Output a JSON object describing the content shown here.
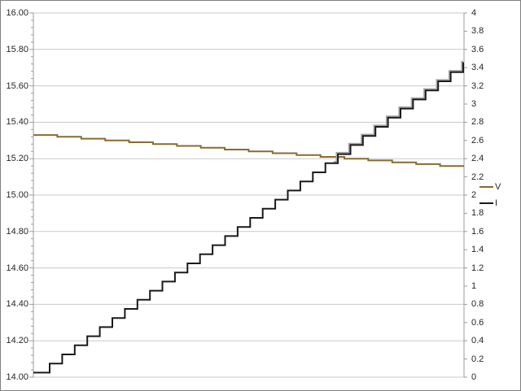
{
  "page": {
    "background": "#ffffff",
    "border_color": "#808080"
  },
  "chart_data": {
    "type": "line",
    "title": "",
    "grid": {
      "horizontal": true,
      "vertical": false,
      "color": "#c8c8c8"
    },
    "axis_color": "#9b9b9b",
    "label_color": "#262626",
    "x_axis": {
      "labels_visible": false
    },
    "left_axis": {
      "min": 14.0,
      "max": 16.0,
      "major_step": 0.2,
      "minor_step": 0.04,
      "tick_labels": [
        "16.00",
        "15.80",
        "15.60",
        "15.40",
        "15.20",
        "15.00",
        "14.80",
        "14.60",
        "14.40",
        "14.20",
        "14.00"
      ]
    },
    "right_axis": {
      "min": 0,
      "max": 4,
      "major_step": 0.2,
      "tick_labels": [
        "4",
        "3.8",
        "3.6",
        "3.4",
        "3.2",
        "3",
        "2.8",
        "2.6",
        "2.4",
        "2.2",
        "2",
        "1.8",
        "1.6",
        "1.4",
        "1.2",
        "1",
        "0.8",
        "0.6",
        "0.4",
        "0.2",
        "0"
      ]
    },
    "legend": {
      "position": "right",
      "entries": [
        {
          "label": "V",
          "color": "#8a6a2f"
        },
        {
          "label": "I",
          "color": "#1a1a1a"
        }
      ]
    },
    "series": [
      {
        "name": "V",
        "axis": "left",
        "color": "#8a6a2f",
        "stroke_width": 2,
        "shape": "step",
        "values": [
          15.33,
          15.32,
          15.31,
          15.3,
          15.29,
          15.28,
          15.27,
          15.26,
          15.25,
          15.24,
          15.23,
          15.22,
          15.21,
          15.2,
          15.19,
          15.18,
          15.17,
          15.16
        ]
      },
      {
        "name": "I",
        "axis": "right",
        "color": "#1a1a1a",
        "stroke_width": 2,
        "shape": "step",
        "values": [
          0.05,
          0.15,
          0.25,
          0.35,
          0.45,
          0.55,
          0.65,
          0.75,
          0.85,
          0.95,
          1.05,
          1.15,
          1.25,
          1.35,
          1.45,
          1.55,
          1.65,
          1.75,
          1.85,
          1.95,
          2.05,
          2.15,
          2.25,
          2.35,
          2.45,
          2.55,
          2.65,
          2.75,
          2.85,
          2.95,
          3.05,
          3.15,
          3.25,
          3.35,
          3.45
        ]
      }
    ]
  }
}
